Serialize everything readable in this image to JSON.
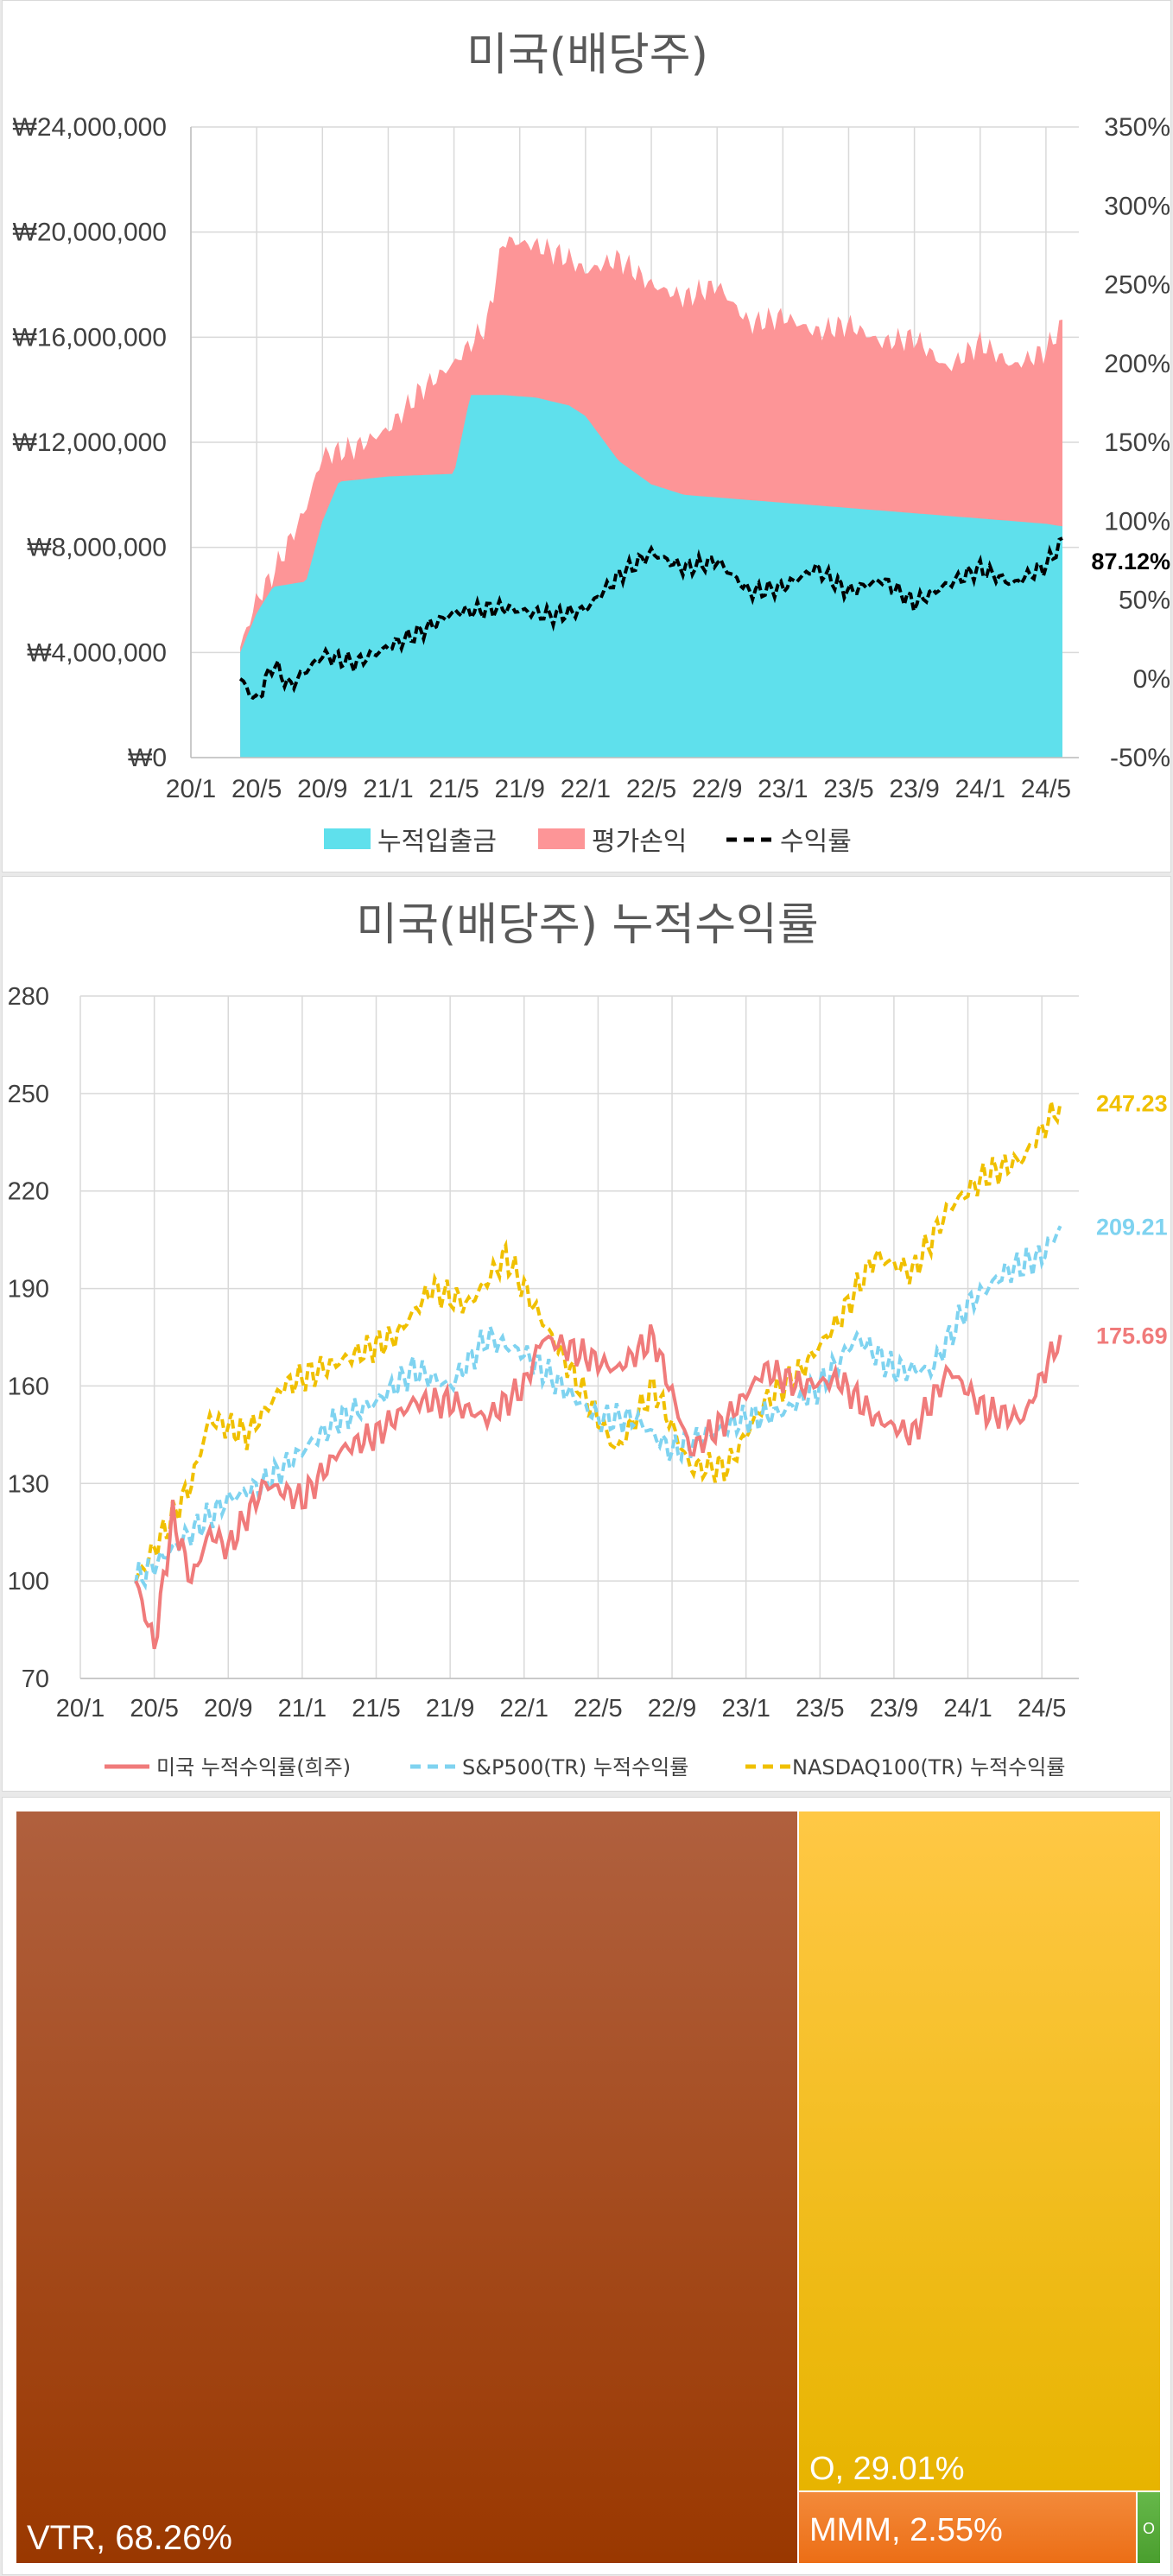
{
  "chart_data": [
    {
      "type": "area",
      "title": "미국(배당주)",
      "x_ticks": [
        "20/1",
        "20/5",
        "20/9",
        "21/1",
        "21/5",
        "21/9",
        "22/1",
        "22/5",
        "22/9",
        "23/1",
        "23/5",
        "23/9",
        "24/1",
        "24/5"
      ],
      "y_left_ticks": [
        "₩0",
        "₩4,000,000",
        "₩8,000,000",
        "₩12,000,000",
        "₩16,000,000",
        "₩20,000,000",
        "₩24,000,000"
      ],
      "y_right_ticks": [
        "-50%",
        "0%",
        "50%",
        "100%",
        "150%",
        "200%",
        "250%",
        "300%",
        "350%"
      ],
      "ylim_left": [
        0,
        24000000
      ],
      "ylim_right": [
        -50,
        350
      ],
      "end_label": "87.12%",
      "colors": {
        "deposit": "#5fe0ec",
        "pnl": "#fd9597",
        "return": "#000000"
      },
      "series": [
        {
          "name": "누적입출금",
          "axis": "left",
          "type": "area",
          "x": [
            "20/4",
            "20/5",
            "20/6",
            "20/8",
            "20/9",
            "20/10",
            "21/1",
            "21/5",
            "21/6",
            "21/8",
            "21/10",
            "21/12",
            "22/1",
            "22/3",
            "22/5",
            "22/7",
            "22/9",
            "23/1",
            "23/5",
            "23/9",
            "24/1",
            "24/5",
            "24/6"
          ],
          "values": [
            4000000,
            5500000,
            6500000,
            6700000,
            9000000,
            10500000,
            10700000,
            10800000,
            13800000,
            13800000,
            13700000,
            13400000,
            13000000,
            11300000,
            10400000,
            10000000,
            9900000,
            9700000,
            9500000,
            9300000,
            9100000,
            8900000,
            8800000
          ]
        },
        {
          "name": "평가손익",
          "axis": "left",
          "type": "area-top",
          "x": [
            "20/4",
            "20/5",
            "20/6",
            "20/8",
            "20/9",
            "20/11",
            "21/1",
            "21/3",
            "21/5",
            "21/7",
            "21/8",
            "21/10",
            "21/12",
            "22/1",
            "22/3",
            "22/5",
            "22/7",
            "22/9",
            "22/11",
            "23/1",
            "23/3",
            "23/5",
            "23/7",
            "23/9",
            "23/11",
            "24/1",
            "24/3",
            "24/5",
            "24/6"
          ],
          "values": [
            4200000,
            6000000,
            7000000,
            9500000,
            11500000,
            11800000,
            12500000,
            14000000,
            15000000,
            16500000,
            19700000,
            19500000,
            19000000,
            18500000,
            19000000,
            18000000,
            17500000,
            18000000,
            16500000,
            16800000,
            16200000,
            16500000,
            15800000,
            16000000,
            14800000,
            15800000,
            14900000,
            15500000,
            16500000
          ]
        },
        {
          "name": "수익률",
          "axis": "right",
          "type": "line-dashed",
          "x": [
            "20/4",
            "20/5",
            "20/6",
            "20/7",
            "20/9",
            "20/11",
            "21/1",
            "21/3",
            "21/5",
            "21/8",
            "21/11",
            "22/1",
            "22/3",
            "22/5",
            "22/7",
            "22/9",
            "22/11",
            "23/1",
            "23/3",
            "23/5",
            "23/7",
            "23/9",
            "23/11",
            "24/1",
            "24/3",
            "24/5",
            "24/6"
          ],
          "values": [
            0,
            -15,
            10,
            -5,
            15,
            10,
            20,
            30,
            42,
            45,
            40,
            44,
            65,
            80,
            70,
            75,
            55,
            58,
            70,
            55,
            63,
            48,
            60,
            70,
            60,
            72,
            87.12
          ]
        }
      ]
    },
    {
      "type": "line",
      "title": "미국(배당주) 누적수익률",
      "x_ticks": [
        "20/1",
        "20/5",
        "20/9",
        "21/1",
        "21/5",
        "21/9",
        "22/1",
        "22/5",
        "22/9",
        "23/1",
        "23/5",
        "23/9",
        "24/1",
        "24/5"
      ],
      "y_ticks": [
        "70",
        "100",
        "130",
        "160",
        "190",
        "220",
        "250",
        "280"
      ],
      "ylim": [
        70,
        280
      ],
      "series": [
        {
          "name": "미국 누적수익률(희주)",
          "color": "#f07b7b",
          "style": "solid",
          "end_label": "175.69",
          "x": [
            "20/4",
            "20/5",
            "20/6",
            "20/7",
            "20/8",
            "20/9",
            "20/11",
            "21/1",
            "21/3",
            "21/5",
            "21/7",
            "21/9",
            "21/11",
            "22/1",
            "22/2",
            "22/4",
            "22/6",
            "22/8",
            "22/10",
            "22/12",
            "23/2",
            "23/4",
            "23/6",
            "23/8",
            "23/10",
            "23/12",
            "24/2",
            "24/4",
            "24/6"
          ],
          "values": [
            100,
            80,
            120,
            100,
            115,
            110,
            130,
            125,
            140,
            145,
            155,
            155,
            150,
            160,
            175,
            170,
            165,
            175,
            140,
            150,
            165,
            160,
            162,
            150,
            145,
            165,
            152,
            150,
            175.69
          ]
        },
        {
          "name": "S&P500(TR) 누적수익률",
          "color": "#7fd3f0",
          "style": "dashed",
          "end_label": "209.21",
          "x": [
            "20/4",
            "20/5",
            "20/7",
            "20/9",
            "20/11",
            "21/1",
            "21/3",
            "21/5",
            "21/7",
            "21/9",
            "21/11",
            "22/1",
            "22/3",
            "22/5",
            "22/7",
            "22/9",
            "22/11",
            "23/1",
            "23/3",
            "23/5",
            "23/7",
            "23/9",
            "23/11",
            "24/1",
            "24/3",
            "24/5",
            "24/6"
          ],
          "values": [
            100,
            105,
            115,
            125,
            130,
            140,
            150,
            155,
            165,
            160,
            175,
            170,
            160,
            150,
            150,
            140,
            145,
            150,
            152,
            160,
            175,
            165,
            165,
            185,
            195,
            200,
            209.21
          ]
        },
        {
          "name": "NASDAQ100(TR) 누적수익률",
          "color": "#f0c000",
          "style": "dashed",
          "end_label": "247.23",
          "x": [
            "20/4",
            "20/5",
            "20/7",
            "20/8",
            "20/10",
            "20/12",
            "21/2",
            "21/4",
            "21/6",
            "21/8",
            "21/10",
            "21/12",
            "22/2",
            "22/4",
            "22/6",
            "22/8",
            "22/10",
            "22/12",
            "23/2",
            "23/4",
            "23/6",
            "23/8",
            "23/10",
            "23/12",
            "24/2",
            "24/4",
            "24/6"
          ],
          "values": [
            100,
            110,
            130,
            150,
            145,
            160,
            165,
            170,
            175,
            190,
            185,
            200,
            180,
            160,
            140,
            160,
            135,
            135,
            155,
            165,
            180,
            200,
            195,
            215,
            225,
            230,
            247.23
          ]
        }
      ]
    },
    {
      "type": "treemap",
      "items": [
        {
          "label": "VTR, 68.26%",
          "name": "VTR",
          "value": 68.26,
          "color_top": "#b0603e",
          "color_bottom": "#9a3800"
        },
        {
          "label": "O, 29.01%",
          "name": "O",
          "value": 29.01,
          "color_top": "#ffc845",
          "color_bottom": "#e7b400"
        },
        {
          "label": "MMM, 2.55%",
          "name": "MMM",
          "value": 2.55,
          "color_top": "#f38a3a",
          "color_bottom": "#ec6e16"
        },
        {
          "label": "O",
          "name": "O",
          "value": 0.18,
          "color_top": "#66b84a",
          "color_bottom": "#4a9e2e"
        }
      ]
    }
  ],
  "legend1": {
    "deposit": "누적입출금",
    "pnl": "평가손익",
    "return": "수익률"
  },
  "legend2": {
    "mine": "미국 누적수익률(희주)",
    "sp500": "S&P500(TR) 누적수익률",
    "nasdaq": "NASDAQ100(TR) 누적수익률"
  }
}
